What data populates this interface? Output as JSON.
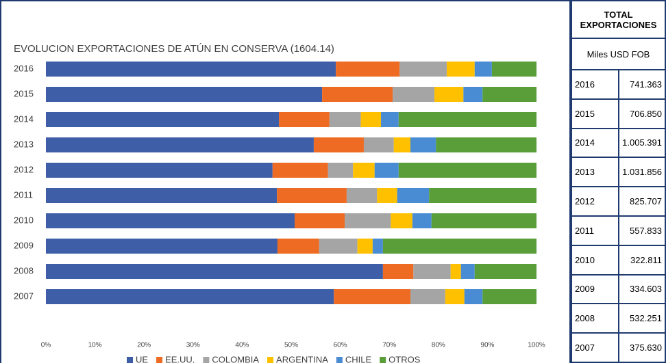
{
  "chart_data": {
    "type": "stacked-barh",
    "title": "EVOLUCION EXPORTACIONES DE ATÚN EN CONSERVA (1604.14)",
    "categories": [
      "2016",
      "2015",
      "2014",
      "2013",
      "2012",
      "2011",
      "2010",
      "2009",
      "2008",
      "2007"
    ],
    "series": [
      {
        "name": "UE",
        "color": "#3f5ea8",
        "values": [
          59.1,
          56.3,
          47.5,
          54.6,
          46.2,
          47.1,
          50.7,
          47.2,
          68.7,
          58.7
        ]
      },
      {
        "name": "EE.UU.",
        "color": "#ed6b22",
        "values": [
          13.0,
          14.4,
          10.3,
          10.2,
          11.3,
          14.2,
          10.2,
          8.5,
          6.2,
          15.6
        ]
      },
      {
        "name": "COLOMBIA",
        "color": "#a5a5a5",
        "values": [
          9.6,
          8.5,
          6.4,
          6.1,
          5.1,
          6.2,
          9.4,
          7.8,
          7.6,
          7.1
        ]
      },
      {
        "name": "ARGENTINA",
        "color": "#ffc000",
        "values": [
          5.7,
          5.9,
          4.1,
          3.4,
          4.4,
          4.1,
          4.4,
          3.1,
          2.1,
          3.9
        ]
      },
      {
        "name": "CHILE",
        "color": "#4a8cd4",
        "values": [
          3.5,
          3.9,
          3.6,
          5.2,
          4.9,
          6.5,
          3.9,
          2.1,
          2.8,
          3.7
        ]
      },
      {
        "name": "OTROS",
        "color": "#5a9e3a",
        "values": [
          9.1,
          11.0,
          28.1,
          20.5,
          28.1,
          21.9,
          21.4,
          31.3,
          12.6,
          11.0
        ]
      }
    ],
    "xlim": [
      0,
      100
    ],
    "xticks": [
      {
        "value": 0,
        "label": "0%"
      },
      {
        "value": 10,
        "label": "10%"
      },
      {
        "value": 20,
        "label": "20%"
      },
      {
        "value": 30,
        "label": "30%"
      },
      {
        "value": 40,
        "label": "40%"
      },
      {
        "value": 50,
        "label": "50%"
      },
      {
        "value": 60,
        "label": "60%"
      },
      {
        "value": 70,
        "label": "70%"
      },
      {
        "value": 80,
        "label": "80%"
      },
      {
        "value": 90,
        "label": "90%"
      },
      {
        "value": 100,
        "label": "100%"
      }
    ],
    "legend": "bottom"
  },
  "table": {
    "header": "TOTAL EXPORTACIONES",
    "unit": "Miles USD FOB",
    "rows": [
      [
        "2016",
        "741.363"
      ],
      [
        "2015",
        "706.850"
      ],
      [
        "2014",
        "1.005.391"
      ],
      [
        "2013",
        "1.031.856"
      ],
      [
        "2012",
        "825.707"
      ],
      [
        "2011",
        "557.833"
      ],
      [
        "2010",
        "322.811"
      ],
      [
        "2009",
        "334.603"
      ],
      [
        "2008",
        "532.251"
      ],
      [
        "2007",
        "375.630"
      ]
    ]
  }
}
